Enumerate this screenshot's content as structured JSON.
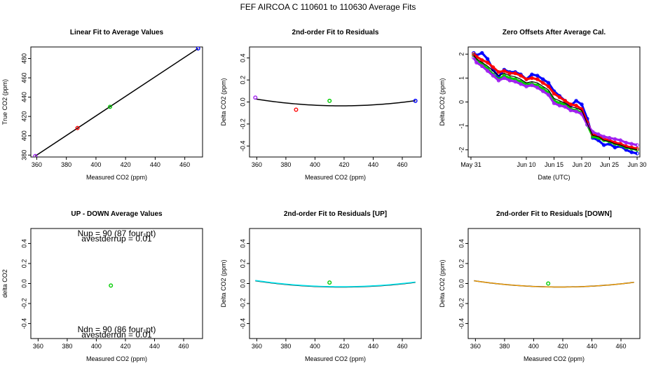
{
  "page_title": "FEF   AIRCOA C   110601 to 110630   Average Fits",
  "colors": {
    "fit_line": "#000000",
    "flask_purple": "#a020f0",
    "flask_red": "#ff0000",
    "flask_green": "#00cc00",
    "flask_blue": "#0000ff",
    "up_fit": "#00e5ee",
    "down_fit": "#ffa500"
  },
  "chart_data": [
    {
      "id": "p1",
      "type": "scatter",
      "title": "Linear Fit to Average Values",
      "xlabel": "Measured CO2 (ppm)",
      "ylabel": "True CO2 (ppm)",
      "xlim": [
        356,
        472
      ],
      "ylim": [
        378,
        492
      ],
      "xticks": [
        360,
        380,
        400,
        420,
        440,
        460
      ],
      "xtick_labels": [
        "360",
        "380",
        "400",
        "420",
        "440",
        "460"
      ],
      "yticks": [
        380,
        400,
        420,
        440,
        460,
        480
      ],
      "ytick_labels": [
        "380",
        "400",
        "420",
        "440",
        "460",
        "480"
      ],
      "points": [
        {
          "x": 359,
          "y": 379,
          "color": "#a020f0"
        },
        {
          "x": 387.5,
          "y": 408,
          "color": "#ff0000"
        },
        {
          "x": 409.5,
          "y": 430,
          "color": "#00cc00"
        },
        {
          "x": 469,
          "y": 490.5,
          "color": "#0000ff"
        }
      ],
      "line": {
        "x": [
          359,
          469
        ],
        "y": [
          379,
          490.5
        ],
        "color": "#000000"
      }
    },
    {
      "id": "p2",
      "type": "scatter",
      "title": "2nd-order Fit to Residuals",
      "xlabel": "Measured CO2 (ppm)",
      "ylabel": "Delta CO2 (ppm)",
      "xlim": [
        355,
        473
      ],
      "ylim": [
        -0.5,
        0.5
      ],
      "xticks": [
        360,
        380,
        400,
        420,
        440,
        460
      ],
      "xtick_labels": [
        "360",
        "380",
        "400",
        "420",
        "440",
        "460"
      ],
      "yticks": [
        -0.4,
        -0.2,
        0.0,
        0.2,
        0.4
      ],
      "ytick_labels": [
        "-0.4",
        "-0.2",
        "0.0",
        "0.2",
        "0.4"
      ],
      "points": [
        {
          "x": 359,
          "y": 0.04,
          "color": "#a020f0"
        },
        {
          "x": 387,
          "y": -0.07,
          "color": "#ff0000"
        },
        {
          "x": 410,
          "y": 0.01,
          "color": "#00cc00"
        },
        {
          "x": 469,
          "y": 0.01,
          "color": "#0000ff"
        }
      ],
      "curve": {
        "a": 1.8e-05,
        "x0": 418,
        "c": -0.035,
        "xrange": [
          359,
          469
        ],
        "color": "#000000"
      }
    },
    {
      "id": "p3",
      "type": "line",
      "title": "Zero Offsets After Average Cal.",
      "xlabel": "Date (UTC)",
      "ylabel": "Delta CO2 (ppm)",
      "xlim": [
        -0.5,
        30.5
      ],
      "ylim": [
        -2.3,
        2.3
      ],
      "xticks": [
        0,
        10,
        15,
        20,
        25,
        30
      ],
      "xtick_labels": [
        "May 31",
        "Jun 10",
        "Jun 15",
        "Jun 20",
        "Jun 25",
        "Jun 30"
      ],
      "yticks": [
        -2,
        -1,
        0,
        1,
        2
      ],
      "ytick_labels": [
        "-2",
        "-1",
        "0",
        "1",
        "2"
      ],
      "series": [
        {
          "color": "#0000ff",
          "x": [
            0.5,
            1,
            2,
            3,
            4,
            5,
            6,
            7,
            8,
            9,
            10,
            11,
            12,
            13,
            14,
            15,
            16,
            17,
            18,
            19,
            20,
            21,
            22,
            23,
            24,
            25,
            26,
            27,
            28,
            29,
            30
          ],
          "y": [
            2.05,
            1.95,
            2.05,
            1.8,
            1.35,
            1.05,
            1.35,
            1.25,
            1.25,
            1.15,
            0.95,
            1.15,
            1.1,
            0.95,
            0.8,
            0.45,
            0.25,
            0.05,
            -0.15,
            0.05,
            -0.1,
            -0.7,
            -1.5,
            -1.6,
            -1.8,
            -1.75,
            -1.9,
            -1.85,
            -2.0,
            -2.1,
            -2.15
          ]
        },
        {
          "color": "#00cc00",
          "x": [
            0.5,
            1,
            2,
            3,
            4,
            5,
            6,
            7,
            8,
            9,
            10,
            11,
            12,
            13,
            14,
            15,
            16,
            17,
            18,
            19,
            20,
            21,
            22,
            23,
            24,
            25,
            26,
            27,
            28,
            29,
            30
          ],
          "y": [
            1.95,
            1.75,
            1.6,
            1.4,
            1.15,
            0.95,
            1.1,
            1.0,
            0.95,
            0.85,
            0.75,
            0.75,
            0.7,
            0.55,
            0.4,
            0.05,
            -0.05,
            -0.1,
            -0.3,
            -0.35,
            -0.45,
            -0.95,
            -1.45,
            -1.5,
            -1.6,
            -1.65,
            -1.75,
            -1.8,
            -1.9,
            -1.95,
            -2.0
          ]
        },
        {
          "color": "#ff0000",
          "x": [
            0.5,
            1,
            2,
            3,
            4,
            5,
            6,
            7,
            8,
            9,
            10,
            11,
            12,
            13,
            14,
            15,
            16,
            17,
            18,
            19,
            20,
            21,
            22,
            23,
            24,
            25,
            26,
            27,
            28,
            29,
            30
          ],
          "y": [
            2.0,
            1.9,
            1.75,
            1.65,
            1.45,
            1.25,
            1.3,
            1.2,
            1.2,
            1.1,
            0.95,
            1.0,
            0.95,
            0.8,
            0.65,
            0.35,
            0.2,
            0.05,
            -0.1,
            -0.15,
            -0.3,
            -0.85,
            -1.35,
            -1.4,
            -1.55,
            -1.6,
            -1.7,
            -1.75,
            -1.85,
            -1.9,
            -1.95
          ]
        },
        {
          "color": "#a020f0",
          "x": [
            0.5,
            1,
            2,
            3,
            4,
            5,
            6,
            7,
            8,
            9,
            10,
            11,
            12,
            13,
            14,
            15,
            16,
            17,
            18,
            19,
            20,
            21,
            22,
            23,
            24,
            25,
            26,
            27,
            28,
            29,
            30
          ],
          "y": [
            1.85,
            1.65,
            1.5,
            1.3,
            1.1,
            0.9,
            1.0,
            0.9,
            0.85,
            0.75,
            0.65,
            0.7,
            0.6,
            0.45,
            0.3,
            -0.05,
            -0.15,
            -0.2,
            -0.35,
            -0.4,
            -0.5,
            -0.95,
            -1.25,
            -1.35,
            -1.45,
            -1.5,
            -1.55,
            -1.6,
            -1.7,
            -1.75,
            -1.8
          ]
        },
        {
          "color": "#000000",
          "x": [
            0.5,
            1,
            2,
            3,
            4,
            5,
            6,
            7,
            8,
            9,
            10,
            11,
            12,
            13,
            14,
            15,
            16,
            17,
            18,
            19,
            20,
            21,
            22,
            23,
            24,
            25,
            26,
            27,
            28,
            29,
            30
          ],
          "y": [
            1.95,
            1.8,
            1.65,
            1.5,
            1.3,
            1.1,
            1.2,
            1.1,
            1.05,
            0.95,
            0.8,
            0.85,
            0.8,
            0.65,
            0.5,
            0.15,
            0.05,
            -0.05,
            -0.2,
            -0.25,
            -0.35,
            -0.9,
            -1.4,
            -1.45,
            -1.6,
            -1.65,
            -1.75,
            -1.8,
            -1.9,
            -1.95,
            -2.0
          ]
        }
      ]
    },
    {
      "id": "p4",
      "type": "scatter",
      "title": "UP - DOWN Average Values",
      "xlabel": "Measured CO2 (ppm)",
      "ylabel": "delta CO2",
      "xlim": [
        355,
        473
      ],
      "ylim": [
        -0.55,
        0.55
      ],
      "xticks": [
        360,
        380,
        400,
        420,
        440,
        460
      ],
      "xtick_labels": [
        "360",
        "380",
        "400",
        "420",
        "440",
        "460"
      ],
      "yticks": [
        -0.4,
        -0.2,
        0.0,
        0.2,
        0.4
      ],
      "ytick_labels": [
        "-0.4",
        "-0.2",
        "0.0",
        "0.2",
        "0.4"
      ],
      "points": [
        {
          "x": 410,
          "y": -0.02,
          "color": "#00cc00"
        }
      ],
      "annotations": [
        {
          "text": "Nup = 90 (87 four-pt)",
          "x": 414,
          "y": 0.5
        },
        {
          "text": "avestderrup =  0.01",
          "x": 414,
          "y": 0.45
        },
        {
          "text": "Ndn = 90 (86 four-pt)",
          "x": 414,
          "y": -0.46
        },
        {
          "text": "avestderrdn =  0.01",
          "x": 414,
          "y": -0.51
        }
      ]
    },
    {
      "id": "p5",
      "type": "scatter",
      "title": "2nd-order Fit to Residuals [UP]",
      "xlabel": "Measured CO2 (ppm)",
      "ylabel": "Delta CO2 (ppm)",
      "xlim": [
        355,
        473
      ],
      "ylim": [
        -0.55,
        0.55
      ],
      "xticks": [
        360,
        380,
        400,
        420,
        440,
        460
      ],
      "xtick_labels": [
        "360",
        "380",
        "400",
        "420",
        "440",
        "460"
      ],
      "yticks": [
        -0.4,
        -0.2,
        0.0,
        0.2,
        0.4
      ],
      "ytick_labels": [
        "-0.4",
        "-0.2",
        "0.0",
        "0.2",
        "0.4"
      ],
      "points": [
        {
          "x": 410,
          "y": 0.01,
          "color": "#00cc00"
        }
      ],
      "curve": {
        "a": 1.8e-05,
        "x0": 418,
        "c": -0.035,
        "xrange": [
          359,
          469
        ],
        "color": "#000000"
      },
      "curve2": {
        "a": 1.8e-05,
        "x0": 418,
        "c": -0.032,
        "xrange": [
          359,
          469
        ],
        "color": "#00e5ee"
      }
    },
    {
      "id": "p6",
      "type": "scatter",
      "title": "2nd-order Fit to Residuals [DOWN]",
      "xlabel": "Measured CO2 (ppm)",
      "ylabel": "Delta CO2 (ppm)",
      "xlim": [
        355,
        473
      ],
      "ylim": [
        -0.55,
        0.55
      ],
      "xticks": [
        360,
        380,
        400,
        420,
        440,
        460
      ],
      "xtick_labels": [
        "360",
        "380",
        "400",
        "420",
        "440",
        "460"
      ],
      "yticks": [
        -0.4,
        -0.2,
        0.0,
        0.2,
        0.4
      ],
      "ytick_labels": [
        "-0.4",
        "-0.2",
        "0.0",
        "0.2",
        "0.4"
      ],
      "points": [
        {
          "x": 410,
          "y": 0.0,
          "color": "#00cc00"
        }
      ],
      "curve": {
        "a": 1.8e-05,
        "x0": 418,
        "c": -0.035,
        "xrange": [
          359,
          469
        ],
        "color": "#000000"
      },
      "curve2": {
        "a": 1.8e-05,
        "x0": 418,
        "c": -0.035,
        "xrange": [
          359,
          469
        ],
        "color": "#ffa500"
      }
    }
  ]
}
